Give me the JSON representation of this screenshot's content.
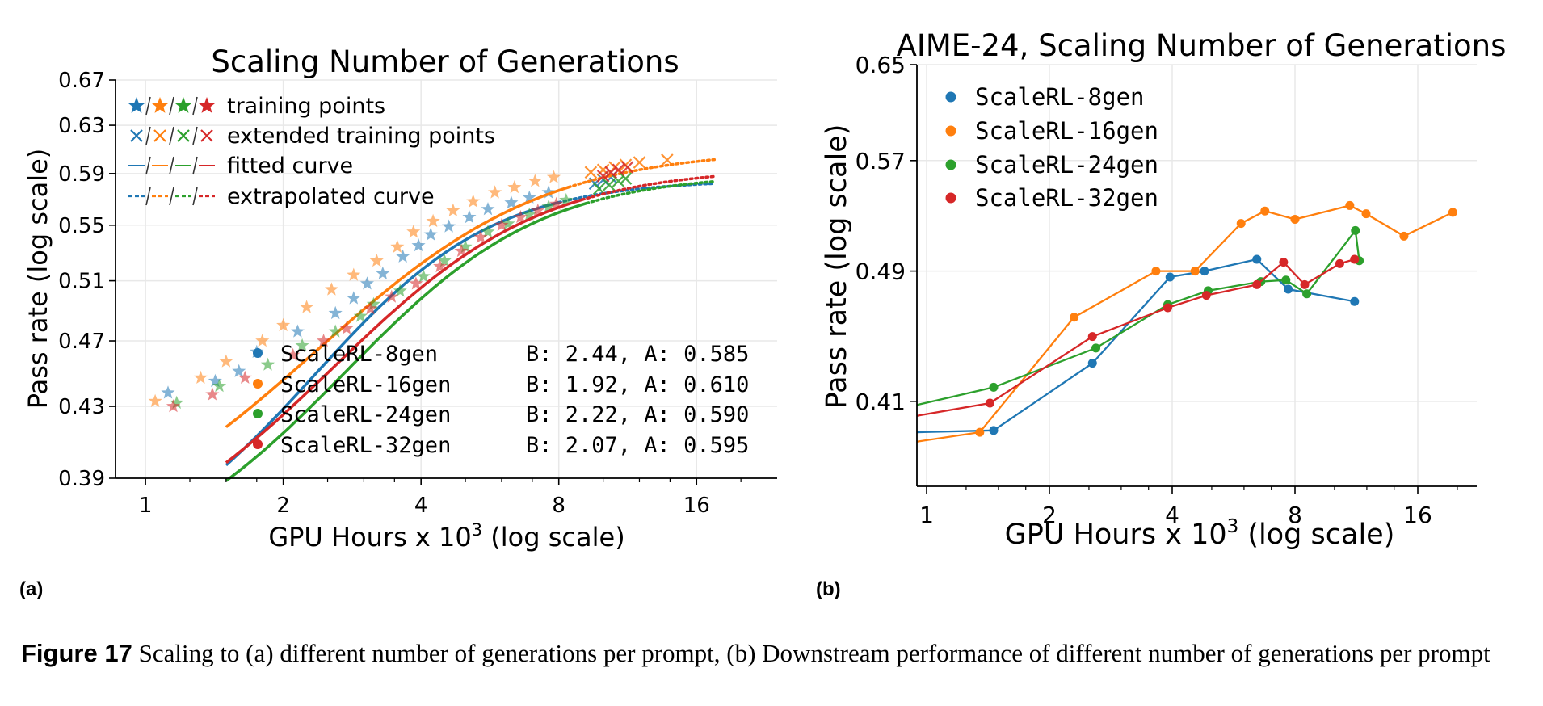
{
  "colors": {
    "8gen": "#1f77b4",
    "16gen": "#ff7f0e",
    "24gen": "#2ca02c",
    "32gen": "#d62728"
  },
  "panel_labels": {
    "a": "(a)",
    "b": "(b)"
  },
  "caption": {
    "label": "Figure 17",
    "text": "Scaling to (a) different number of generations per prompt, (b) Downstream performance of different number of generations per prompt"
  },
  "chart_data": [
    {
      "type": "scatter",
      "title": "Scaling Number of Generations",
      "xlabel_prefix": "GPU Hours x 10",
      "xlabel_sup": "3",
      "xlabel_suffix": " (log scale)",
      "ylabel": "Pass rate (log scale)",
      "xscale": "log",
      "yscale": "log",
      "xlim": [
        0.86,
        24
      ],
      "ylim": [
        0.39,
        0.67
      ],
      "xticks": [
        1,
        2,
        4,
        8,
        16
      ],
      "yticks": [
        0.39,
        0.43,
        0.47,
        0.51,
        0.55,
        0.59,
        0.63,
        0.67
      ],
      "legend_top": [
        "training points",
        "extended training points",
        "fitted curve",
        "extrapolated curve"
      ],
      "legend_bottom_position": "lower-right",
      "series": [
        {
          "key": "8gen",
          "name": "ScaleRL-8gen",
          "B": "2.44",
          "A": "0.585",
          "fit_label": "B: 2.44, A: 0.585",
          "C_mid": 2.9,
          "x0": 0.4,
          "fit_start": 1.5,
          "fit_end": 8.0,
          "extrap_end": 17.5,
          "training_points": [
            [
              1.12,
              0.438
            ],
            [
              1.42,
              0.445
            ],
            [
              1.6,
              0.451
            ],
            [
              1.75,
              0.463
            ],
            [
              2.15,
              0.476
            ],
            [
              2.6,
              0.488
            ],
            [
              2.85,
              0.498
            ],
            [
              3.05,
              0.508
            ],
            [
              3.3,
              0.515
            ],
            [
              3.65,
              0.527
            ],
            [
              3.95,
              0.535
            ],
            [
              4.2,
              0.543
            ],
            [
              4.6,
              0.549
            ],
            [
              5.1,
              0.556
            ],
            [
              5.6,
              0.562
            ],
            [
              6.3,
              0.567
            ],
            [
              6.9,
              0.571
            ],
            [
              7.6,
              0.575
            ]
          ],
          "extended_points": [
            [
              9.6,
              0.582
            ],
            [
              10.0,
              0.585
            ],
            [
              10.4,
              0.587
            ]
          ]
        },
        {
          "key": "16gen",
          "name": "ScaleRL-16gen",
          "B": "1.92",
          "A": "0.610",
          "fit_label": "B: 1.92, A: 0.610",
          "C_mid": 3.0,
          "x0": 0.5,
          "fit_start": 1.5,
          "fit_end": 8.4,
          "extrap_end": 17.5,
          "training_points": [
            [
              1.05,
              0.433
            ],
            [
              1.32,
              0.447
            ],
            [
              1.5,
              0.457
            ],
            [
              1.8,
              0.47
            ],
            [
              2.0,
              0.48
            ],
            [
              2.25,
              0.492
            ],
            [
              2.55,
              0.504
            ],
            [
              2.85,
              0.514
            ],
            [
              3.2,
              0.524
            ],
            [
              3.55,
              0.534
            ],
            [
              3.85,
              0.545
            ],
            [
              4.25,
              0.553
            ],
            [
              4.7,
              0.561
            ],
            [
              5.2,
              0.568
            ],
            [
              5.8,
              0.575
            ],
            [
              6.4,
              0.579
            ],
            [
              7.1,
              0.584
            ],
            [
              7.8,
              0.587
            ]
          ],
          "extended_points": [
            [
              9.4,
              0.591
            ],
            [
              10.0,
              0.593
            ],
            [
              10.6,
              0.595
            ],
            [
              11.2,
              0.597
            ],
            [
              12.0,
              0.599
            ],
            [
              13.8,
              0.601
            ]
          ]
        },
        {
          "key": "24gen",
          "name": "ScaleRL-24gen",
          "B": "2.22",
          "A": "0.590",
          "fit_label": "B: 2.22, A: 0.590",
          "C_mid": 3.4,
          "x0": 0.45,
          "fit_start": 1.5,
          "fit_end": 9.2,
          "extrap_end": 17.5,
          "training_points": [
            [
              1.17,
              0.432
            ],
            [
              1.45,
              0.442
            ],
            [
              1.85,
              0.455
            ],
            [
              2.2,
              0.467
            ],
            [
              2.6,
              0.476
            ],
            [
              2.95,
              0.486
            ],
            [
              3.15,
              0.494
            ],
            [
              3.6,
              0.503
            ],
            [
              4.05,
              0.513
            ],
            [
              4.5,
              0.524
            ],
            [
              5.0,
              0.534
            ],
            [
              5.6,
              0.545
            ],
            [
              6.2,
              0.551
            ],
            [
              6.9,
              0.558
            ],
            [
              7.6,
              0.564
            ],
            [
              8.3,
              0.569
            ]
          ],
          "extended_points": [
            [
              9.8,
              0.578
            ],
            [
              10.3,
              0.581
            ],
            [
              10.8,
              0.584
            ],
            [
              11.2,
              0.586
            ]
          ]
        },
        {
          "key": "32gen",
          "name": "ScaleRL-32gen",
          "B": "2.07",
          "A": "0.595",
          "fit_label": "B: 2.07, A: 0.595",
          "C_mid": 3.2,
          "x0": 0.42,
          "fit_start": 1.5,
          "fit_end": 9.0,
          "extrap_end": 17.5,
          "training_points": [
            [
              1.15,
              0.43
            ],
            [
              1.4,
              0.437
            ],
            [
              1.65,
              0.447
            ],
            [
              2.1,
              0.461
            ],
            [
              2.45,
              0.47
            ],
            [
              2.75,
              0.478
            ],
            [
              3.1,
              0.491
            ],
            [
              3.45,
              0.499
            ],
            [
              3.9,
              0.508
            ],
            [
              4.4,
              0.52
            ],
            [
              4.9,
              0.531
            ],
            [
              5.4,
              0.541
            ],
            [
              6.0,
              0.55
            ],
            [
              6.6,
              0.556
            ],
            [
              7.2,
              0.561
            ],
            [
              7.9,
              0.566
            ]
          ],
          "extended_points": [
            [
              10.0,
              0.588
            ],
            [
              10.4,
              0.591
            ],
            [
              10.8,
              0.593
            ],
            [
              11.3,
              0.595
            ]
          ]
        }
      ]
    },
    {
      "type": "line",
      "title": "AIME-24, Scaling Number of Generations",
      "xlabel_prefix": "GPU Hours x 10",
      "xlabel_sup": "3",
      "xlabel_suffix": " (log scale)",
      "ylabel": "Pass rate (log scale)",
      "xscale": "log",
      "yscale": "log",
      "xlim": [
        1.0,
        24
      ],
      "ylim": [
        0.365,
        0.65
      ],
      "xticks": [
        1,
        2,
        4,
        8,
        16
      ],
      "yticks": [
        0.41,
        0.49,
        0.57,
        0.65
      ],
      "legend_position": "upper-left",
      "series": [
        {
          "key": "8gen",
          "name": "ScaleRL-8gen",
          "x": [
            1.0,
            1.46,
            2.55,
            3.95,
            4.8,
            6.45,
            7.7,
            11.2
          ],
          "y": [
            0.393,
            0.394,
            0.432,
            0.486,
            0.49,
            0.498,
            0.478,
            0.47
          ]
        },
        {
          "key": "16gen",
          "name": "ScaleRL-16gen",
          "x": [
            1.0,
            1.35,
            2.3,
            3.65,
            4.55,
            5.9,
            6.75,
            8.0,
            10.9,
            11.95,
            14.8,
            19.5
          ],
          "y": [
            0.388,
            0.393,
            0.46,
            0.49,
            0.49,
            0.523,
            0.532,
            0.526,
            0.536,
            0.53,
            0.514,
            0.531
          ]
        },
        {
          "key": "24gen",
          "name": "ScaleRL-24gen",
          "x": [
            1.0,
            1.46,
            2.6,
            3.9,
            4.9,
            6.6,
            7.6,
            8.55,
            11.25,
            11.5
          ],
          "y": [
            0.408,
            0.418,
            0.441,
            0.468,
            0.477,
            0.483,
            0.484,
            0.475,
            0.518,
            0.497
          ]
        },
        {
          "key": "32gen",
          "name": "ScaleRL-32gen",
          "x": [
            1.0,
            1.43,
            2.55,
            3.9,
            4.85,
            6.45,
            7.5,
            8.45,
            10.3,
            11.2
          ],
          "y": [
            0.402,
            0.409,
            0.448,
            0.466,
            0.474,
            0.481,
            0.496,
            0.481,
            0.495,
            0.498
          ]
        }
      ]
    }
  ]
}
